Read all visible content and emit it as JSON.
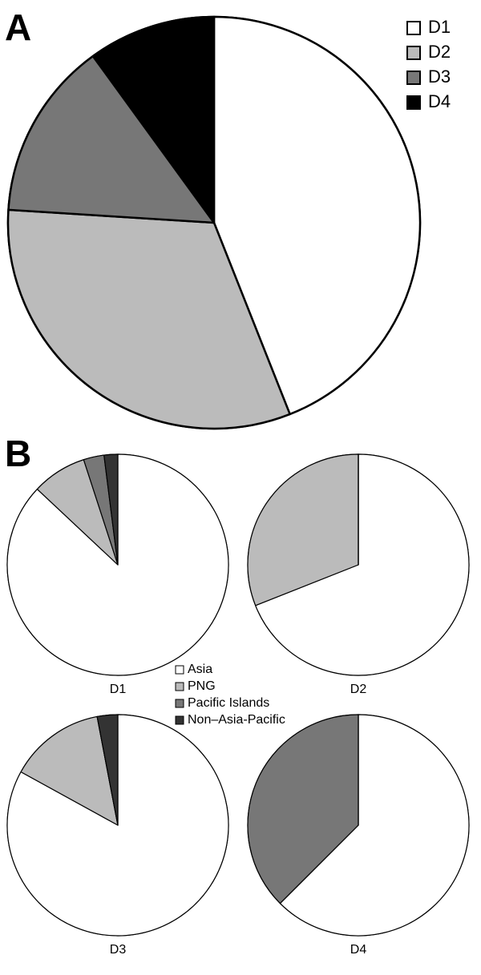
{
  "chart_data": [
    {
      "type": "pie",
      "panel": "A",
      "categories": [
        "D1",
        "D2",
        "D3",
        "D4"
      ],
      "colors": [
        "#ffffff",
        "#bbbbbb",
        "#777777",
        "#000000"
      ],
      "values": [
        44,
        32,
        14,
        10
      ]
    },
    {
      "type": "multipie",
      "panel": "B",
      "categories": [
        "Asia",
        "PNG",
        "Pacific Islands",
        "Non–Asia-Pacific"
      ],
      "colors": [
        "#ffffff",
        "#bbbbbb",
        "#777777",
        "#333333"
      ],
      "pies": [
        {
          "title": "D1",
          "values": [
            87,
            8,
            3,
            2
          ]
        },
        {
          "title": "D2",
          "values": [
            69,
            31,
            0,
            0
          ]
        },
        {
          "title": "D3",
          "values": [
            83,
            14,
            0,
            3
          ]
        },
        {
          "title": "D4",
          "values": [
            62.5,
            0,
            37.5,
            0
          ]
        }
      ]
    }
  ]
}
